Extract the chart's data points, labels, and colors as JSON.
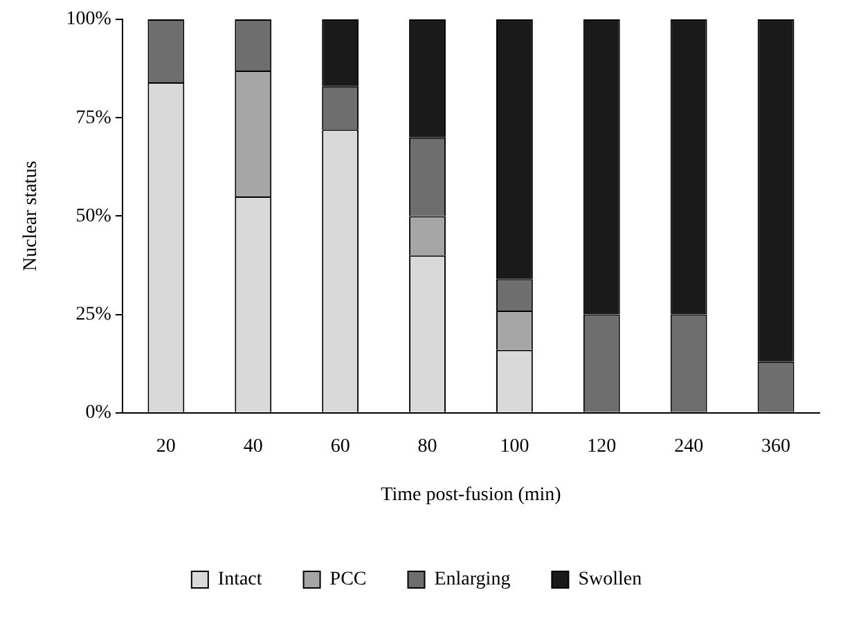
{
  "chart_data": {
    "type": "bar",
    "stacked": true,
    "xlabel": "Time post-fusion (min)",
    "ylabel": "Nuclear status",
    "categories": [
      "20",
      "40",
      "60",
      "80",
      "100",
      "120",
      "240",
      "360"
    ],
    "series": [
      {
        "name": "Intact",
        "color": "#d9d9d9",
        "values": [
          84,
          55,
          72,
          40,
          16,
          0,
          0,
          0
        ]
      },
      {
        "name": "PCC",
        "color": "#a6a6a6",
        "values": [
          0,
          32,
          0,
          10,
          10,
          0,
          0,
          0
        ]
      },
      {
        "name": "Enlarging",
        "color": "#6e6e6e",
        "values": [
          16,
          13,
          11,
          20,
          8,
          25,
          25,
          13
        ]
      },
      {
        "name": "Swollen",
        "color": "#1a1a1a",
        "values": [
          0,
          0,
          17,
          30,
          66,
          75,
          75,
          87
        ]
      }
    ],
    "ylim": [
      0,
      100
    ],
    "yticks": [
      {
        "value": 0,
        "label": "0%"
      },
      {
        "value": 25,
        "label": "25%"
      },
      {
        "value": 50,
        "label": "50%"
      },
      {
        "value": 75,
        "label": "75%"
      },
      {
        "value": 100,
        "label": "100%"
      }
    ],
    "grid": false,
    "legend": "bottom"
  }
}
